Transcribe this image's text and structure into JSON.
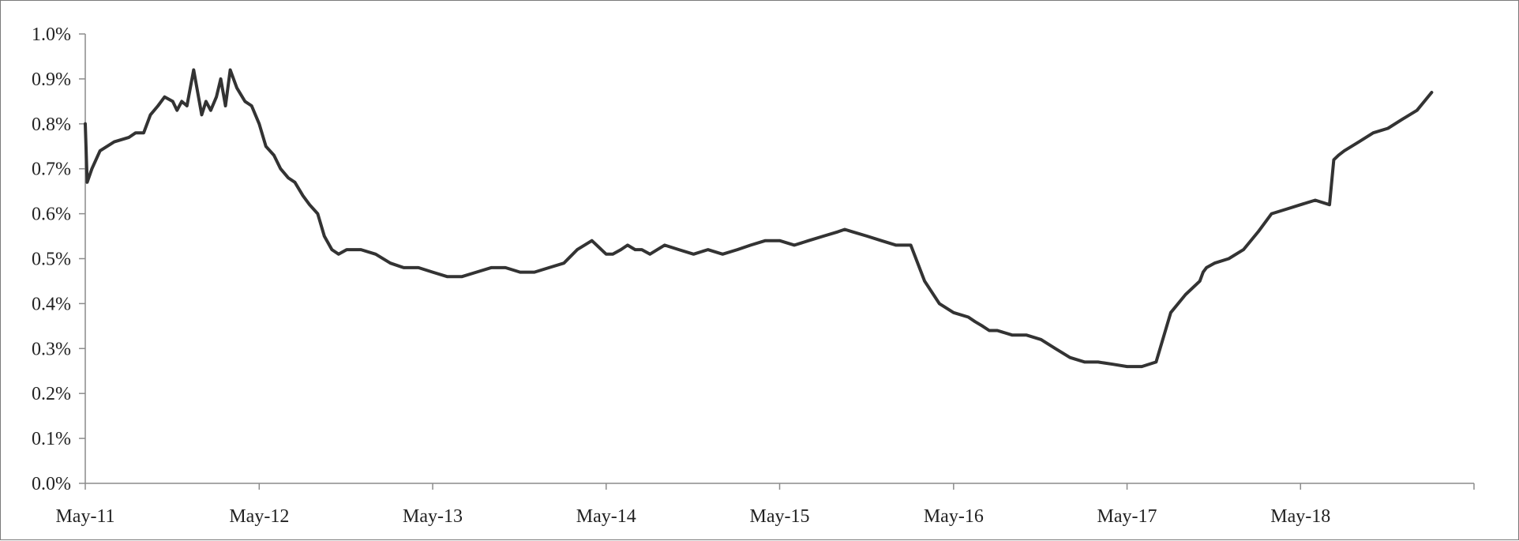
{
  "chart_data": {
    "type": "line",
    "title": "",
    "xlabel": "",
    "ylabel": "",
    "grid": false,
    "legend": "none",
    "y_format": "percent",
    "ylim": [
      0.0,
      1.0
    ],
    "y_ticks": [
      0.0,
      0.1,
      0.2,
      0.3,
      0.4,
      0.5,
      0.6,
      0.7,
      0.8,
      0.9,
      1.0
    ],
    "y_tick_labels": [
      "0.0%",
      "0.1%",
      "0.2%",
      "0.3%",
      "0.4%",
      "0.5%",
      "0.6%",
      "0.7%",
      "0.8%",
      "0.9%",
      "1.0%"
    ],
    "xlim": [
      "2011-05-01",
      "2019-05-01"
    ],
    "x_ticks": [
      "2011-05-01",
      "2012-05-01",
      "2013-05-01",
      "2014-05-01",
      "2015-05-01",
      "2016-05-01",
      "2017-05-01",
      "2018-05-01",
      "2019-05-01"
    ],
    "x_tick_labels": [
      "May-11",
      "May-12",
      "May-13",
      "May-14",
      "May-15",
      "May-16",
      "May-17",
      "May-18",
      ""
    ],
    "line_color": "#333333",
    "series": [
      {
        "x": [
          "2011-05-01",
          "2011-05-05",
          "2011-05-15",
          "2011-06-01",
          "2011-07-01",
          "2011-08-01",
          "2011-08-15",
          "2011-09-01",
          "2011-09-15",
          "2011-10-01",
          "2011-10-15",
          "2011-11-01",
          "2011-11-10",
          "2011-11-20",
          "2011-12-01",
          "2011-12-15",
          "2012-01-01",
          "2012-01-10",
          "2012-01-20",
          "2012-02-01",
          "2012-02-10",
          "2012-02-20",
          "2012-03-01",
          "2012-03-15",
          "2012-04-01",
          "2012-04-15",
          "2012-05-01",
          "2012-05-15",
          "2012-06-01",
          "2012-06-15",
          "2012-07-01",
          "2012-07-15",
          "2012-08-01",
          "2012-08-15",
          "2012-09-01",
          "2012-09-15",
          "2012-10-01",
          "2012-10-15",
          "2012-11-01",
          "2012-12-01",
          "2013-01-01",
          "2013-02-01",
          "2013-03-01",
          "2013-04-01",
          "2013-05-01",
          "2013-06-01",
          "2013-07-01",
          "2013-08-01",
          "2013-09-01",
          "2013-10-01",
          "2013-11-01",
          "2013-12-01",
          "2014-01-01",
          "2014-02-01",
          "2014-03-01",
          "2014-04-01",
          "2014-05-01",
          "2014-05-15",
          "2014-06-01",
          "2014-06-15",
          "2014-07-01",
          "2014-07-15",
          "2014-08-01",
          "2014-09-01",
          "2014-10-01",
          "2014-11-01",
          "2014-12-01",
          "2015-01-01",
          "2015-02-01",
          "2015-03-01",
          "2015-04-01",
          "2015-05-01",
          "2015-06-01",
          "2015-07-01",
          "2015-08-01",
          "2015-09-01",
          "2015-09-15",
          "2015-10-01",
          "2015-11-01",
          "2015-12-01",
          "2016-01-01",
          "2016-02-01",
          "2016-03-01",
          "2016-04-01",
          "2016-05-01",
          "2016-06-01",
          "2016-06-15",
          "2016-07-01",
          "2016-07-15",
          "2016-08-01",
          "2016-09-01",
          "2016-10-01",
          "2016-11-01",
          "2016-12-01",
          "2017-01-01",
          "2017-02-01",
          "2017-03-01",
          "2017-04-01",
          "2017-05-01",
          "2017-06-01",
          "2017-07-01",
          "2017-08-01",
          "2017-09-01",
          "2017-10-01",
          "2017-10-08",
          "2017-10-15",
          "2017-11-01",
          "2017-12-01",
          "2018-01-01",
          "2018-02-01",
          "2018-03-01",
          "2018-04-01",
          "2018-05-01",
          "2018-06-01",
          "2018-07-01",
          "2018-07-10",
          "2018-07-20",
          "2018-08-01",
          "2018-09-01",
          "2018-10-01",
          "2018-11-01",
          "2018-12-01",
          "2019-01-01",
          "2019-02-01"
        ],
        "y": [
          0.8,
          0.67,
          0.7,
          0.74,
          0.76,
          0.77,
          0.78,
          0.78,
          0.82,
          0.84,
          0.86,
          0.85,
          0.83,
          0.85,
          0.84,
          0.92,
          0.82,
          0.85,
          0.83,
          0.86,
          0.9,
          0.84,
          0.92,
          0.88,
          0.85,
          0.84,
          0.8,
          0.75,
          0.73,
          0.7,
          0.68,
          0.67,
          0.64,
          0.62,
          0.6,
          0.55,
          0.52,
          0.51,
          0.52,
          0.52,
          0.51,
          0.49,
          0.48,
          0.48,
          0.47,
          0.46,
          0.46,
          0.47,
          0.48,
          0.48,
          0.47,
          0.47,
          0.48,
          0.49,
          0.52,
          0.54,
          0.51,
          0.51,
          0.52,
          0.53,
          0.52,
          0.52,
          0.51,
          0.53,
          0.52,
          0.51,
          0.52,
          0.51,
          0.52,
          0.53,
          0.54,
          0.54,
          0.53,
          0.54,
          0.55,
          0.56,
          0.565,
          0.56,
          0.55,
          0.54,
          0.53,
          0.53,
          0.45,
          0.4,
          0.38,
          0.37,
          0.36,
          0.35,
          0.34,
          0.34,
          0.33,
          0.33,
          0.32,
          0.3,
          0.28,
          0.27,
          0.27,
          0.265,
          0.26,
          0.26,
          0.27,
          0.38,
          0.42,
          0.45,
          0.47,
          0.48,
          0.49,
          0.5,
          0.52,
          0.56,
          0.6,
          0.61,
          0.62,
          0.63,
          0.62,
          0.72,
          0.73,
          0.74,
          0.76,
          0.78,
          0.79,
          0.81,
          0.83,
          0.87
        ]
      }
    ]
  }
}
